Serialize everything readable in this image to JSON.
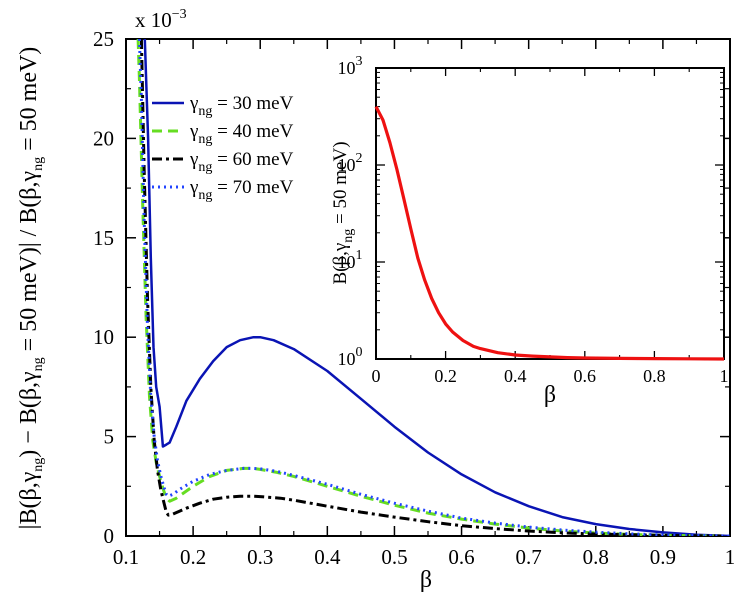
{
  "chart_data": [
    {
      "type": "line",
      "title": "",
      "xlabel": "β",
      "ylabel": "|B(β,γng) − B(β,γng = 50 meV)| / B(β,γng = 50 meV)",
      "y_scale_note": "x 10−3",
      "xlim": [
        0.1,
        1.0
      ],
      "ylim": [
        0,
        25
      ],
      "x_ticks": [
        "0.1",
        "0.2",
        "0.3",
        "0.4",
        "0.5",
        "0.6",
        "0.7",
        "0.8",
        "0.9",
        "1"
      ],
      "y_ticks": [
        "0",
        "5",
        "10",
        "15",
        "20",
        "25"
      ],
      "legend_position": "upper-left",
      "series": [
        {
          "name": "γng = 30 meV",
          "color": "#0a14b4",
          "dash": "solid",
          "x": [
            0.128,
            0.133,
            0.137,
            0.141,
            0.145,
            0.15,
            0.155,
            0.16,
            0.165,
            0.175,
            0.19,
            0.21,
            0.23,
            0.25,
            0.27,
            0.29,
            0.3,
            0.32,
            0.35,
            0.4,
            0.45,
            0.5,
            0.55,
            0.6,
            0.65,
            0.7,
            0.75,
            0.8,
            0.85,
            0.9,
            0.95,
            1.0
          ],
          "values": [
            25.0,
            20.0,
            14.0,
            9.5,
            7.5,
            6.5,
            4.5,
            4.6,
            4.7,
            5.5,
            6.8,
            7.9,
            8.8,
            9.5,
            9.85,
            10.0,
            10.0,
            9.85,
            9.4,
            8.3,
            6.9,
            5.5,
            4.2,
            3.1,
            2.2,
            1.5,
            0.95,
            0.6,
            0.35,
            0.18,
            0.06,
            0.0
          ]
        },
        {
          "name": "γng = 40 meV",
          "color": "#66dd22",
          "dash": "dashed",
          "x": [
            0.118,
            0.12,
            0.125,
            0.13,
            0.135,
            0.14,
            0.145,
            0.15,
            0.155,
            0.16,
            0.165,
            0.175,
            0.2,
            0.225,
            0.25,
            0.275,
            0.29,
            0.3,
            0.325,
            0.35,
            0.4,
            0.45,
            0.5,
            0.55,
            0.6,
            0.65,
            0.7,
            0.75,
            0.8,
            0.85,
            0.9,
            0.95,
            1.0
          ],
          "values": [
            25.0,
            23.0,
            16.5,
            11.0,
            7.0,
            4.8,
            3.7,
            3.0,
            2.4,
            1.9,
            1.75,
            1.9,
            2.5,
            3.0,
            3.3,
            3.4,
            3.4,
            3.35,
            3.2,
            3.0,
            2.5,
            2.0,
            1.55,
            1.15,
            0.85,
            0.6,
            0.4,
            0.25,
            0.15,
            0.08,
            0.04,
            0.01,
            0.0
          ]
        },
        {
          "name": "γng = 60 meV",
          "color": "#000000",
          "dash": "dashdot",
          "x": [
            0.123,
            0.127,
            0.132,
            0.137,
            0.142,
            0.147,
            0.152,
            0.157,
            0.16,
            0.163,
            0.17,
            0.19,
            0.21,
            0.23,
            0.25,
            0.27,
            0.29,
            0.3,
            0.33,
            0.35,
            0.4,
            0.45,
            0.5,
            0.55,
            0.6,
            0.65,
            0.7,
            0.75,
            0.8,
            0.85,
            0.9,
            0.95,
            1.0
          ],
          "values": [
            25.0,
            18.5,
            12.0,
            7.5,
            4.8,
            3.3,
            2.3,
            1.6,
            1.2,
            1.05,
            1.1,
            1.4,
            1.65,
            1.85,
            1.95,
            2.0,
            2.0,
            1.98,
            1.9,
            1.8,
            1.5,
            1.2,
            0.95,
            0.72,
            0.52,
            0.37,
            0.25,
            0.16,
            0.1,
            0.06,
            0.03,
            0.01,
            0.0
          ]
        },
        {
          "name": "γng = 70 meV",
          "color": "#2244ff",
          "dash": "dotted",
          "x": [
            0.12,
            0.123,
            0.127,
            0.132,
            0.137,
            0.142,
            0.147,
            0.152,
            0.157,
            0.16,
            0.163,
            0.17,
            0.18,
            0.2,
            0.225,
            0.25,
            0.275,
            0.29,
            0.3,
            0.325,
            0.35,
            0.4,
            0.45,
            0.5,
            0.55,
            0.6,
            0.65,
            0.7,
            0.75,
            0.8,
            0.85,
            0.9,
            0.95,
            1.0
          ],
          "values": [
            25.0,
            22.0,
            16.0,
            10.5,
            7.0,
            5.0,
            3.8,
            3.0,
            2.4,
            2.1,
            2.0,
            2.1,
            2.35,
            2.75,
            3.1,
            3.3,
            3.4,
            3.4,
            3.38,
            3.25,
            3.05,
            2.6,
            2.1,
            1.65,
            1.25,
            0.9,
            0.65,
            0.45,
            0.3,
            0.19,
            0.11,
            0.05,
            0.02,
            0.0
          ]
        }
      ]
    },
    {
      "type": "line",
      "title": "",
      "xlabel": "β",
      "ylabel": "B(β,γng = 50 meV)",
      "xlim": [
        0,
        1
      ],
      "ylim": [
        1,
        1000
      ],
      "y_scale": "log",
      "x_ticks": [
        "0",
        "0.2",
        "0.4",
        "0.6",
        "0.8",
        "1"
      ],
      "y_ticks": [
        {
          "base": "10",
          "exp": "0"
        },
        {
          "base": "10",
          "exp": "1"
        },
        {
          "base": "10",
          "exp": "2"
        },
        {
          "base": "10",
          "exp": "3"
        }
      ],
      "series": [
        {
          "name": "γng = 50 meV",
          "color": "#ee1111",
          "dash": "solid",
          "x": [
            0.0,
            0.02,
            0.04,
            0.06,
            0.08,
            0.1,
            0.12,
            0.14,
            0.16,
            0.18,
            0.2,
            0.22,
            0.25,
            0.28,
            0.3,
            0.35,
            0.4,
            0.45,
            0.5,
            0.55,
            0.6,
            0.7,
            0.8,
            0.9,
            1.0
          ],
          "values": [
            400,
            290,
            170,
            90,
            45,
            22,
            11,
            6.5,
            4.2,
            3.0,
            2.3,
            1.9,
            1.55,
            1.35,
            1.28,
            1.16,
            1.1,
            1.07,
            1.05,
            1.035,
            1.025,
            1.015,
            1.01,
            1.005,
            1.0
          ]
        }
      ]
    }
  ],
  "main": {
    "scale_prefix": "x 10",
    "scale_exp": "−3",
    "xlabel": "β",
    "ylabel_parts": {
      "p1": "|B(β,γ",
      "sub1": "ng",
      "p2": ") − B(β,γ",
      "sub2": "ng",
      "p3": " = 50 meV)| / B(β,γ",
      "sub3": "ng",
      "p4": " = 50 meV)"
    },
    "legend": [
      {
        "sym": "γ",
        "sub": "ng",
        "rest": " = 30 meV"
      },
      {
        "sym": "γ",
        "sub": "ng",
        "rest": " = 40 meV"
      },
      {
        "sym": "γ",
        "sub": "ng",
        "rest": " = 60 meV"
      },
      {
        "sym": "γ",
        "sub": "ng",
        "rest": " = 70 meV"
      }
    ]
  },
  "inset": {
    "xlabel": "β",
    "ylabel_parts": {
      "p1": "B(β,γ",
      "sub1": "ng",
      "p2": " = 50 meV)"
    }
  }
}
